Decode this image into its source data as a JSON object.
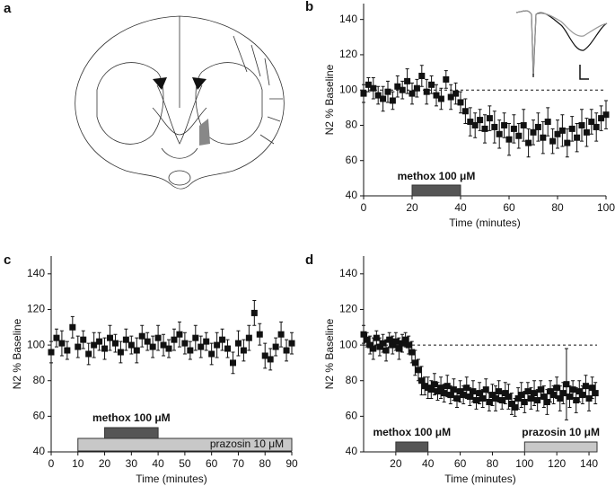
{
  "diagram": {
    "label": "a"
  },
  "chart_data": [
    {
      "type": "scatter",
      "label": "b",
      "xlabel": "Time (minutes)",
      "ylabel": "N2 % Baseline",
      "xlim": [
        0,
        100
      ],
      "ylim": [
        40,
        149
      ],
      "xticks": [
        0,
        20,
        40,
        60,
        80,
        100
      ],
      "yticks": [
        40,
        60,
        80,
        100,
        120,
        140
      ],
      "reference": 100,
      "color": "#111111",
      "x": [
        0,
        2,
        4,
        6,
        8,
        10,
        12,
        14,
        16,
        18,
        20,
        22,
        24,
        26,
        28,
        30,
        32,
        34,
        36,
        38,
        40,
        42,
        44,
        46,
        48,
        50,
        52,
        54,
        56,
        58,
        60,
        62,
        64,
        66,
        68,
        70,
        72,
        74,
        76,
        78,
        80,
        82,
        84,
        86,
        88,
        90,
        92,
        94,
        96,
        98,
        100
      ],
      "values": [
        98,
        103,
        101,
        97,
        95,
        99,
        94,
        102,
        100,
        105,
        98,
        101,
        108,
        99,
        103,
        97,
        95,
        106,
        96,
        98,
        93,
        88,
        82,
        80,
        83,
        78,
        84,
        79,
        75,
        80,
        72,
        78,
        74,
        80,
        70,
        76,
        79,
        73,
        82,
        71,
        75,
        77,
        70,
        78,
        73,
        80,
        76,
        82,
        79,
        84,
        86
      ],
      "errors": [
        5,
        4,
        6,
        5,
        7,
        6,
        5,
        6,
        5,
        7,
        6,
        5,
        6,
        7,
        5,
        6,
        6,
        5,
        7,
        6,
        6,
        7,
        8,
        7,
        6,
        8,
        7,
        9,
        8,
        7,
        9,
        8,
        7,
        9,
        8,
        7,
        8,
        9,
        8,
        7,
        8,
        9,
        8,
        7,
        8,
        9,
        8,
        7,
        8,
        7,
        8
      ],
      "bars": [
        {
          "label": "methox 100 μM",
          "start": 20,
          "end": 40,
          "color": "#555555"
        }
      ]
    },
    {
      "type": "scatter",
      "label": "c",
      "xlabel": "Time (minutes)",
      "ylabel": "N2 % Baseline",
      "xlim": [
        0,
        90
      ],
      "ylim": [
        40,
        150
      ],
      "xticks": [
        0,
        10,
        20,
        30,
        40,
        50,
        60,
        70,
        80,
        90
      ],
      "yticks": [
        40,
        60,
        80,
        100,
        120,
        140
      ],
      "color": "#111111",
      "x": [
        0,
        2,
        4,
        6,
        8,
        10,
        12,
        14,
        16,
        18,
        20,
        22,
        24,
        26,
        28,
        30,
        32,
        34,
        36,
        38,
        40,
        42,
        44,
        46,
        48,
        50,
        52,
        54,
        56,
        58,
        60,
        62,
        64,
        66,
        68,
        70,
        72,
        74,
        76,
        78,
        80,
        82,
        84,
        86,
        88,
        90
      ],
      "values": [
        96,
        104,
        101,
        97,
        110,
        99,
        103,
        95,
        100,
        102,
        98,
        104,
        101,
        96,
        103,
        100,
        97,
        105,
        102,
        99,
        104,
        100,
        98,
        103,
        106,
        101,
        97,
        104,
        99,
        102,
        95,
        100,
        103,
        98,
        90,
        101,
        97,
        104,
        118,
        106,
        94,
        92,
        99,
        106,
        97,
        101
      ],
      "errors": [
        6,
        5,
        7,
        5,
        6,
        6,
        5,
        6,
        7,
        5,
        6,
        7,
        5,
        6,
        6,
        5,
        7,
        6,
        5,
        6,
        7,
        6,
        5,
        6,
        7,
        6,
        5,
        7,
        6,
        5,
        6,
        7,
        6,
        5,
        6,
        7,
        6,
        7,
        7,
        6,
        7,
        6,
        5,
        7,
        6,
        6
      ],
      "bars": [
        {
          "label": "methox 100 μM",
          "start": 20,
          "end": 40,
          "color": "#555555"
        },
        {
          "label": "prazosin 10 μM",
          "start": 10,
          "end": 90,
          "color": "#c8c8c8"
        }
      ]
    },
    {
      "type": "scatter",
      "label": "d",
      "xlabel": "Time (minutes)",
      "ylabel": "N2 % Baseline",
      "xlim": [
        0,
        145
      ],
      "ylim": [
        40,
        150
      ],
      "xticks": [
        20,
        40,
        60,
        80,
        100,
        120,
        140
      ],
      "yticks": [
        40,
        60,
        80,
        100,
        120,
        140
      ],
      "reference": 100,
      "color": "#111111",
      "x": [
        0,
        2,
        4,
        6,
        8,
        10,
        12,
        14,
        16,
        18,
        20,
        22,
        24,
        26,
        28,
        30,
        32,
        34,
        36,
        38,
        40,
        42,
        44,
        46,
        48,
        50,
        52,
        54,
        56,
        58,
        60,
        62,
        64,
        66,
        68,
        70,
        72,
        74,
        76,
        78,
        80,
        82,
        84,
        86,
        88,
        90,
        92,
        94,
        96,
        98,
        100,
        102,
        104,
        106,
        108,
        110,
        112,
        114,
        116,
        118,
        120,
        122,
        124,
        126,
        128,
        130,
        132,
        134,
        136,
        138,
        140,
        142,
        144
      ],
      "values": [
        106,
        103,
        100,
        98,
        104,
        99,
        101,
        97,
        103,
        100,
        102,
        98,
        101,
        103,
        100,
        96,
        90,
        86,
        80,
        77,
        76,
        75,
        78,
        74,
        76,
        73,
        77,
        72,
        75,
        70,
        74,
        72,
        76,
        71,
        74,
        69,
        73,
        70,
        75,
        68,
        72,
        70,
        74,
        69,
        73,
        71,
        67,
        65,
        70,
        72,
        68,
        74,
        70,
        73,
        69,
        75,
        71,
        68,
        74,
        72,
        76,
        70,
        73,
        78,
        71,
        75,
        69,
        74,
        72,
        77,
        70,
        76,
        73
      ],
      "errors": [
        5,
        4,
        5,
        6,
        4,
        5,
        5,
        6,
        4,
        5,
        5,
        6,
        5,
        4,
        5,
        6,
        7,
        6,
        8,
        5,
        6,
        5,
        6,
        5,
        6,
        5,
        6,
        5,
        6,
        5,
        6,
        5,
        6,
        5,
        6,
        5,
        6,
        5,
        6,
        5,
        6,
        7,
        6,
        5,
        6,
        7,
        6,
        5,
        6,
        7,
        6,
        5,
        6,
        7,
        6,
        5,
        6,
        7,
        6,
        5,
        6,
        7,
        6,
        20,
        6,
        5,
        7,
        6,
        5,
        6,
        7,
        6,
        6
      ],
      "bars": [
        {
          "label": "methox 100 μM",
          "start": 20,
          "end": 40,
          "color": "#555555"
        },
        {
          "label": "prazosin 10 μM",
          "start": 100,
          "end": 145,
          "color": "#c8c8c8"
        }
      ]
    }
  ]
}
